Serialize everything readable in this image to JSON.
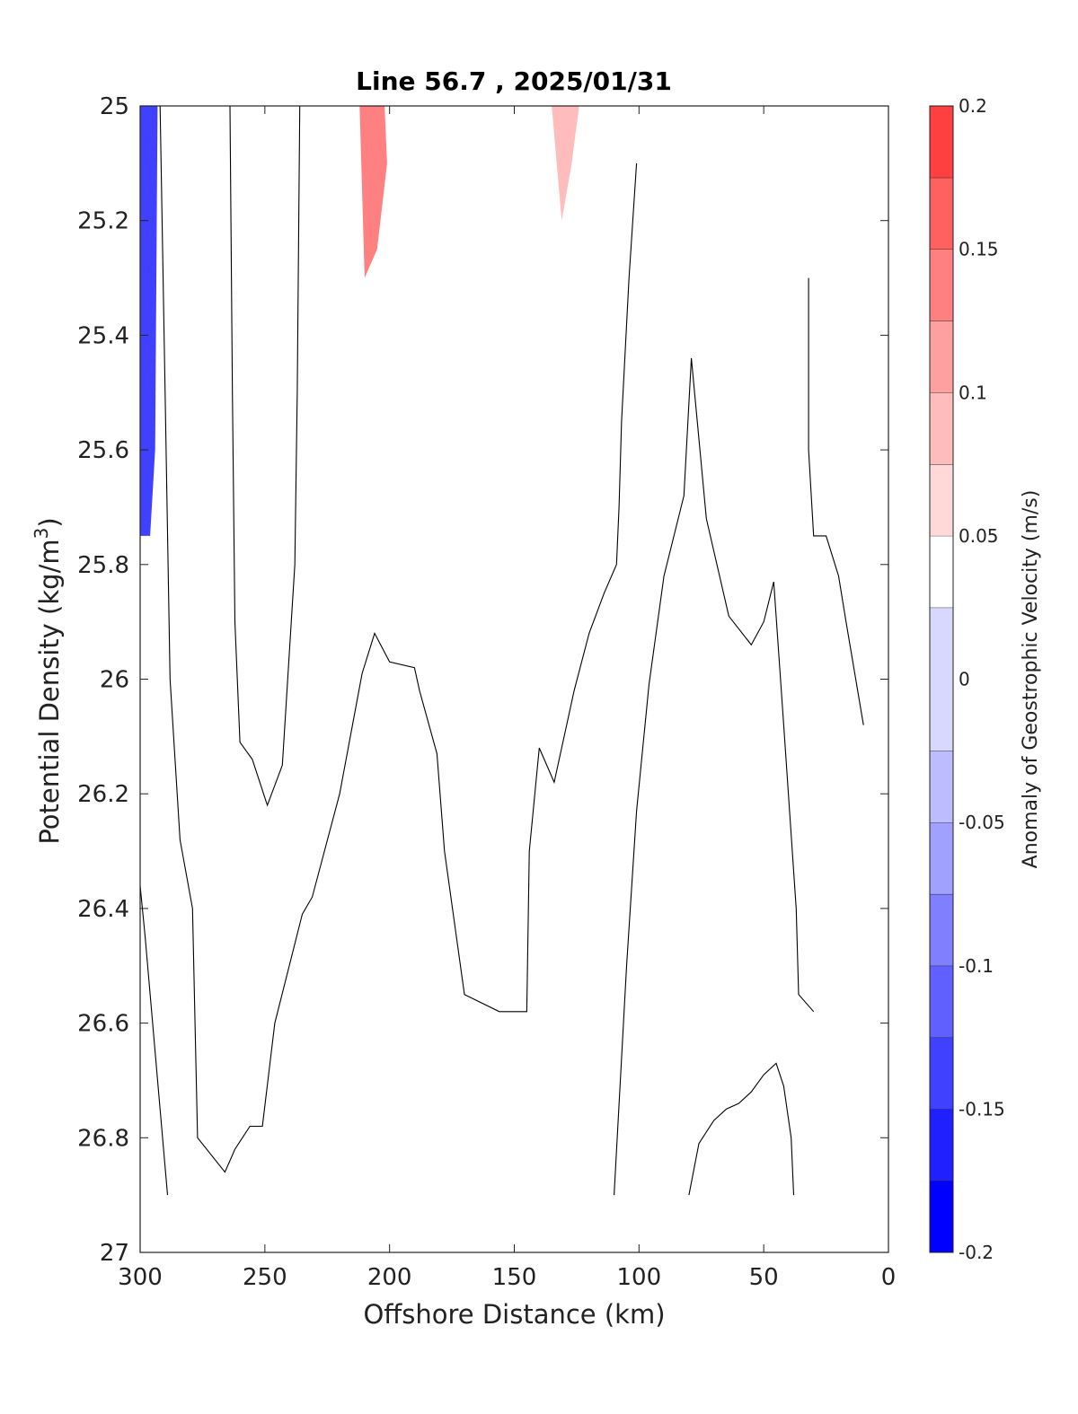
{
  "chart_data": {
    "type": "contour",
    "title": "Line 56.7 , 2025/01/31",
    "xlabel": "Offshore Distance (km)",
    "ylabel_main": "Potential Density (kg/m",
    "ylabel_sup": "3",
    "ylabel_close": ")",
    "xlim": [
      300,
      0
    ],
    "ylim": [
      25,
      27
    ],
    "x_reversed": true,
    "y_reversed": true,
    "xticks": [
      300,
      250,
      200,
      150,
      100,
      50,
      0
    ],
    "xtick_labels": [
      "300",
      "250",
      "200",
      "150",
      "100",
      "50",
      "0"
    ],
    "yticks": [
      25,
      25.2,
      25.4,
      25.6,
      25.8,
      26,
      26.2,
      26.4,
      26.6,
      26.8,
      27
    ],
    "ytick_labels": [
      "25",
      "25.2",
      "25.4",
      "25.6",
      "25.8",
      "26",
      "26.2",
      "26.4",
      "26.6",
      "26.8",
      "27"
    ],
    "grid": false,
    "colorbar": {
      "label": "Anomaly of Geostrophic Velocity (m/s)",
      "range": [
        -0.2,
        0.2
      ],
      "ticks": [
        -0.2,
        -0.15,
        -0.1,
        -0.05,
        0,
        0.05,
        0.1,
        0.15,
        0.2
      ],
      "tick_labels": [
        "-0.2",
        "-0.15",
        "-0.1",
        "-0.05",
        "0",
        "0.05",
        "0.1",
        "0.15",
        "0.2"
      ],
      "levels": [
        -0.2,
        -0.175,
        -0.15,
        -0.125,
        -0.1,
        -0.075,
        -0.05,
        -0.025,
        0.025,
        0.05,
        0.075,
        0.1,
        0.125,
        0.15,
        0.175,
        0.2
      ],
      "colors": [
        "#0000ff",
        "#2020ff",
        "#4040ff",
        "#6060ff",
        "#8080ff",
        "#a0a0ff",
        "#bcbcff",
        "#d8d8ff",
        "#ffffff",
        "#ffd8d8",
        "#ffbcbc",
        "#ffa0a0",
        "#ff8080",
        "#ff6060",
        "#ff4040",
        "#ff2020"
      ]
    },
    "filled_regions": [
      {
        "name": "blue-core-3",
        "level": -0.15,
        "points": [
          [
            300,
            25
          ],
          [
            293,
            25
          ],
          [
            294,
            25.6
          ],
          [
            296,
            25.75
          ],
          [
            300,
            25.75
          ]
        ]
      },
      {
        "name": "red-top-5",
        "level": 0.125,
        "points": [
          [
            212,
            25
          ],
          [
            202,
            25
          ],
          [
            201,
            25.1
          ],
          [
            205,
            25.25
          ],
          [
            210,
            25.3
          ]
        ]
      },
      {
        "name": "red-top-2",
        "level": 0.075,
        "points": [
          [
            135,
            25
          ],
          [
            124,
            25
          ],
          [
            127,
            25.1
          ],
          [
            131,
            25.2
          ],
          [
            133,
            25.1
          ]
        ]
      }
    ],
    "contour_lines": [
      {
        "name": "zero-contour-1",
        "level": 0,
        "points": [
          [
            292,
            25
          ],
          [
            290,
            25.5
          ],
          [
            288,
            26
          ],
          [
            284,
            26.28
          ],
          [
            279,
            26.4
          ],
          [
            278,
            26.6
          ],
          [
            277,
            26.8
          ],
          [
            266,
            26.86
          ],
          [
            262,
            26.82
          ],
          [
            256,
            26.78
          ],
          [
            251,
            26.78
          ],
          [
            246,
            26.6
          ],
          [
            235,
            26.41
          ],
          [
            231,
            26.38
          ],
          [
            220,
            26.2
          ],
          [
            211,
            25.99
          ],
          [
            206,
            25.92
          ],
          [
            200,
            25.97
          ],
          [
            190,
            25.98
          ],
          [
            188,
            26.02
          ],
          [
            181,
            26.13
          ],
          [
            178,
            26.3
          ],
          [
            170,
            26.55
          ],
          [
            156,
            26.58
          ],
          [
            149,
            26.58
          ],
          [
            145,
            26.58
          ],
          [
            144,
            26.3
          ],
          [
            140,
            26.12
          ],
          [
            134,
            26.18
          ],
          [
            126,
            26.02
          ],
          [
            120,
            25.92
          ],
          [
            114,
            25.85
          ],
          [
            109,
            25.8
          ],
          [
            108,
            25.7
          ],
          [
            107,
            25.55
          ],
          [
            104,
            25.3
          ],
          [
            101,
            25.1
          ]
        ]
      },
      {
        "name": "zero-contour-2",
        "level": 0,
        "points": [
          [
            264,
            25
          ],
          [
            263,
            25.5
          ],
          [
            262,
            25.9
          ],
          [
            260,
            26.11
          ],
          [
            255,
            26.14
          ],
          [
            249,
            26.22
          ],
          [
            243,
            26.15
          ],
          [
            238,
            25.8
          ],
          [
            237,
            25.5
          ],
          [
            236,
            25
          ]
        ]
      },
      {
        "name": "zero-contour-3",
        "level": 0,
        "points": [
          [
            300,
            26.36
          ],
          [
            298,
            26.45
          ],
          [
            295,
            26.6
          ],
          [
            292,
            26.75
          ],
          [
            289,
            26.9
          ]
        ]
      },
      {
        "name": "zero-contour-4",
        "level": 0,
        "points": [
          [
            110,
            26.9
          ],
          [
            105,
            26.5
          ],
          [
            101,
            26.23
          ],
          [
            96,
            26.01
          ],
          [
            90,
            25.82
          ],
          [
            82,
            25.68
          ],
          [
            79,
            25.44
          ],
          [
            73,
            25.72
          ],
          [
            64,
            25.89
          ],
          [
            55,
            25.94
          ],
          [
            50,
            25.9
          ],
          [
            46,
            25.83
          ],
          [
            42,
            26.08
          ],
          [
            37,
            26.4
          ],
          [
            36,
            26.55
          ],
          [
            30,
            26.58
          ]
        ]
      },
      {
        "name": "zero-contour-5",
        "level": 0,
        "points": [
          [
            80,
            26.9
          ],
          [
            76,
            26.81
          ],
          [
            70,
            26.77
          ],
          [
            65,
            26.75
          ],
          [
            60,
            26.74
          ],
          [
            55,
            26.72
          ],
          [
            50,
            26.69
          ],
          [
            45,
            26.67
          ],
          [
            42,
            26.71
          ],
          [
            39,
            26.8
          ],
          [
            38,
            26.9
          ]
        ]
      },
      {
        "name": "zero-contour-6",
        "level": 0,
        "points": [
          [
            32,
            25.3
          ],
          [
            32,
            25.6
          ],
          [
            30,
            25.75
          ],
          [
            25,
            25.75
          ],
          [
            20,
            25.82
          ],
          [
            17,
            25.9
          ],
          [
            10,
            26.08
          ]
        ]
      }
    ]
  }
}
